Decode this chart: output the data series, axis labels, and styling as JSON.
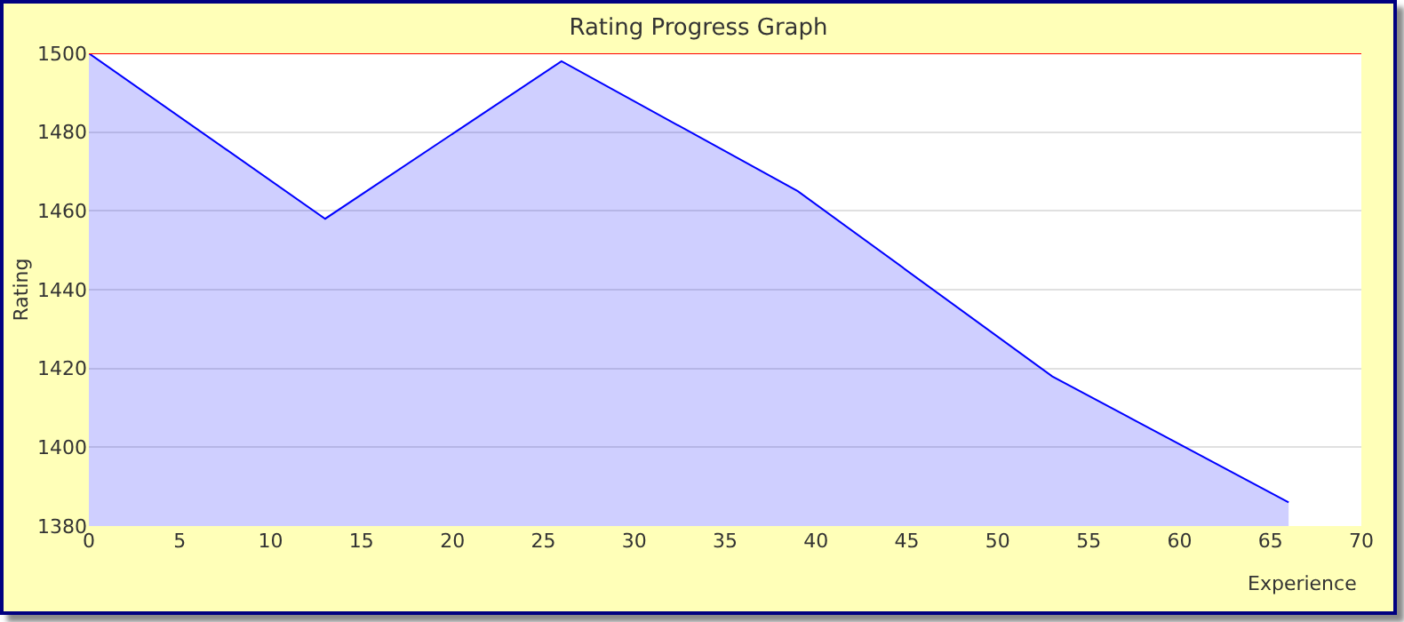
{
  "chart_data": {
    "type": "area",
    "title": "Rating Progress Graph",
    "xlabel": "Experience",
    "ylabel": "Rating",
    "x": [
      0,
      13,
      26,
      39,
      53,
      66
    ],
    "series": [
      {
        "color": "#0000ff",
        "values": [
          1500,
          1458,
          1498,
          1465,
          1418,
          1386
        ]
      }
    ],
    "xlim": [
      0,
      70
    ],
    "xticks": [
      0,
      5,
      10,
      15,
      20,
      25,
      30,
      35,
      40,
      45,
      50,
      55,
      60,
      65,
      70
    ],
    "ylim": [
      1380,
      1500
    ],
    "yticks": [
      1380,
      1400,
      1420,
      1440,
      1460,
      1480,
      1500
    ],
    "ref_lines": [
      {
        "axis": "y",
        "value": 1500,
        "color": "#ff0000"
      }
    ],
    "grid": "y",
    "marker": "none",
    "line_style": "solid"
  }
}
